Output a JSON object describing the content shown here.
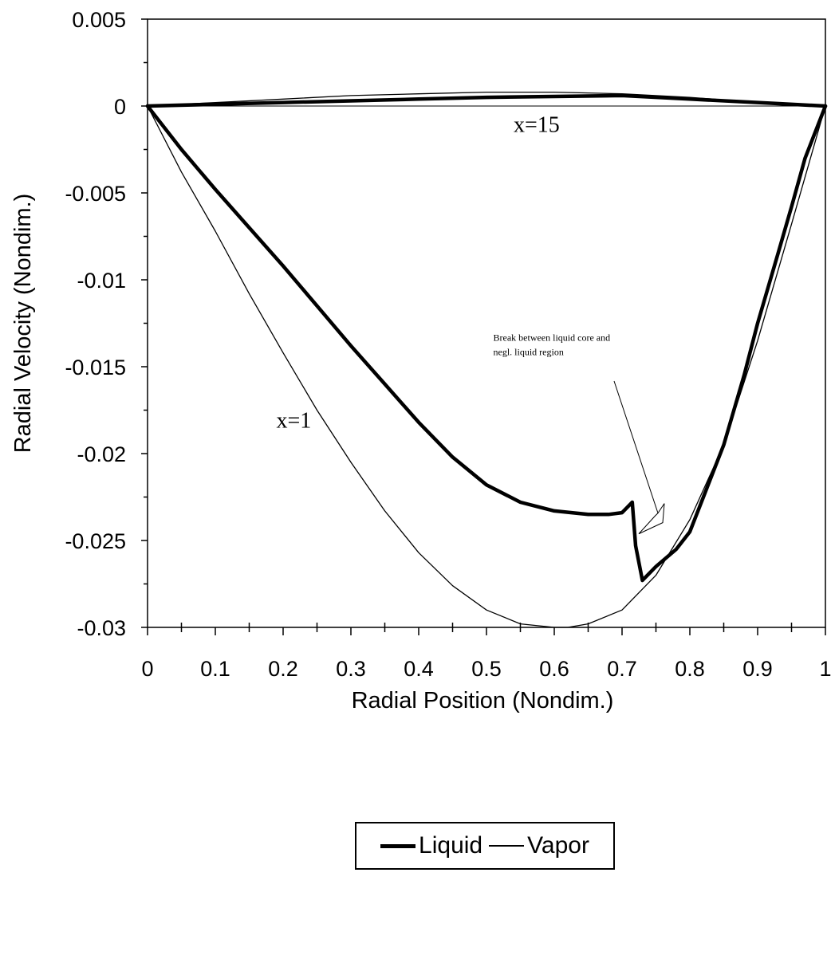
{
  "chart_data": {
    "type": "line",
    "title": "",
    "xlabel": "Radial Position (Nondim.)",
    "ylabel": "Radial Velocity (Nondim.)",
    "xlim": [
      0,
      1
    ],
    "ylim": [
      -0.03,
      0.005
    ],
    "x_ticks": [
      "0",
      "0.1",
      "0.2",
      "0.3",
      "0.4",
      "0.5",
      "0.6",
      "0.7",
      "0.8",
      "0.9",
      "1"
    ],
    "x_tick_values": [
      0,
      0.1,
      0.2,
      0.3,
      0.4,
      0.5,
      0.6,
      0.7,
      0.8,
      0.9,
      1
    ],
    "y_ticks": [
      "0.005",
      "0",
      "-0.005",
      "-0.01",
      "-0.015",
      "-0.02",
      "-0.025",
      "-0.03"
    ],
    "y_tick_values": [
      0.005,
      0,
      -0.005,
      -0.01,
      -0.015,
      -0.02,
      -0.025,
      -0.03
    ],
    "grid": false,
    "legend_position": "bottom-center",
    "legend": [
      {
        "label": "Liquid",
        "style": "thick"
      },
      {
        "label": "Vapor",
        "style": "thin"
      }
    ],
    "series": [
      {
        "name": "Liquid",
        "group": "x=15",
        "style": "thick",
        "x": [
          0,
          0.1,
          0.2,
          0.3,
          0.4,
          0.5,
          0.6,
          0.7,
          0.8,
          0.9,
          1.0
        ],
        "y": [
          0,
          0.0001,
          0.0002,
          0.0003,
          0.0004,
          0.0005,
          0.00055,
          0.0006,
          0.0004,
          0.0002,
          0
        ]
      },
      {
        "name": "Vapor",
        "group": "x=15",
        "style": "thin",
        "x": [
          0,
          0.1,
          0.2,
          0.3,
          0.4,
          0.5,
          0.6,
          0.7,
          0.8,
          0.9,
          0.95,
          1.0
        ],
        "y": [
          0,
          0.0002,
          0.0004,
          0.0006,
          0.0007,
          0.0008,
          0.0008,
          0.0007,
          0.0005,
          0.0002,
          0.0001,
          0
        ]
      },
      {
        "name": "Liquid",
        "group": "x=1",
        "style": "thick",
        "x": [
          0,
          0.05,
          0.1,
          0.15,
          0.2,
          0.25,
          0.3,
          0.35,
          0.4,
          0.45,
          0.5,
          0.55,
          0.6,
          0.65,
          0.68,
          0.7,
          0.715,
          0.72,
          0.73,
          0.75,
          0.78,
          0.8,
          0.82,
          0.85,
          0.88,
          0.9,
          0.93,
          0.95,
          0.97,
          1.0
        ],
        "y": [
          0,
          -0.0025,
          -0.0048,
          -0.007,
          -0.0092,
          -0.0115,
          -0.0138,
          -0.016,
          -0.0182,
          -0.0202,
          -0.0218,
          -0.0228,
          -0.0233,
          -0.0235,
          -0.0235,
          -0.0234,
          -0.0228,
          -0.0253,
          -0.0273,
          -0.0265,
          -0.0255,
          -0.0245,
          -0.0225,
          -0.0195,
          -0.0155,
          -0.0125,
          -0.0085,
          -0.0058,
          -0.003,
          0
        ]
      },
      {
        "name": "Vapor",
        "group": "x=1",
        "style": "thin",
        "x": [
          0,
          0.05,
          0.1,
          0.15,
          0.2,
          0.25,
          0.3,
          0.35,
          0.4,
          0.45,
          0.5,
          0.55,
          0.6,
          0.62,
          0.65,
          0.7,
          0.75,
          0.8,
          0.85,
          0.9,
          0.95,
          1.0
        ],
        "y": [
          0,
          -0.0038,
          -0.0072,
          -0.0108,
          -0.0142,
          -0.0175,
          -0.0205,
          -0.0233,
          -0.0257,
          -0.0276,
          -0.029,
          -0.0298,
          -0.03,
          -0.03,
          -0.0298,
          -0.029,
          -0.027,
          -0.0238,
          -0.0195,
          -0.0135,
          -0.0068,
          0
        ]
      }
    ],
    "annotations": [
      {
        "text": "x=15",
        "x": 0.54,
        "y": -0.0015
      },
      {
        "text": "x=1",
        "x": 0.19,
        "y": -0.0185
      },
      {
        "line1": "Break between liquid core and",
        "line2": "negl. liquid region",
        "x": 0.51,
        "y": -0.0135,
        "arrow_to_x": 0.72,
        "arrow_to_y": -0.0248
      }
    ]
  }
}
